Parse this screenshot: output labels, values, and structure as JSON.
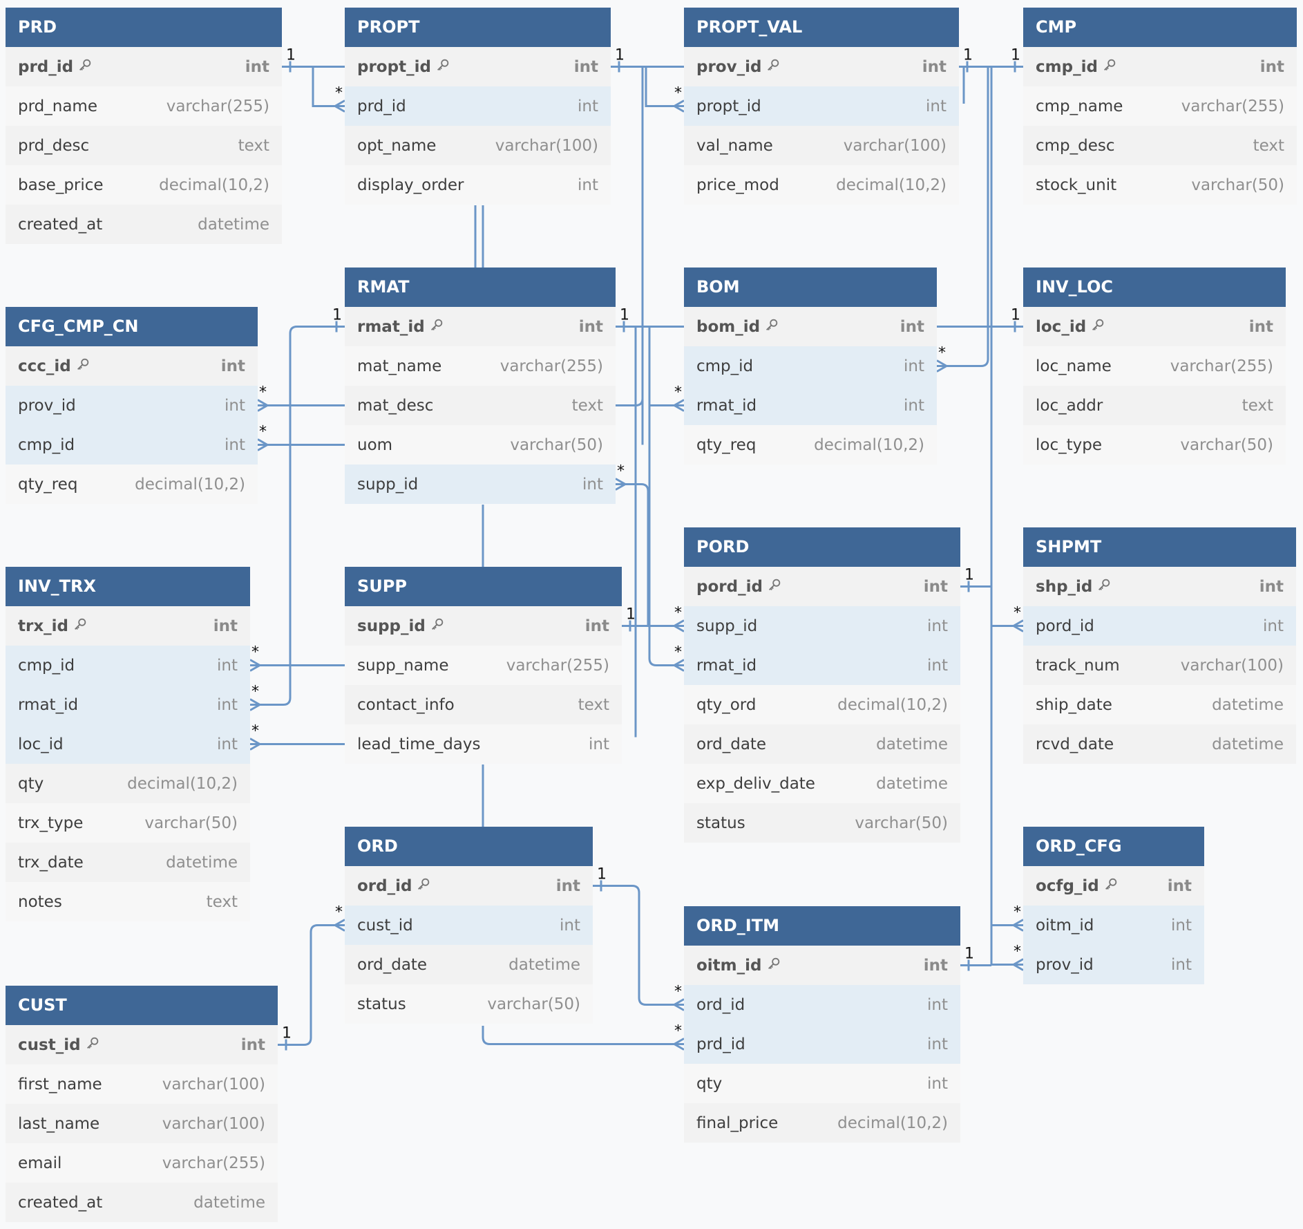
{
  "tables": {
    "PRD": {
      "name": "PRD",
      "fields": [
        {
          "name": "prd_id",
          "type": "int",
          "pk": true
        },
        {
          "name": "prd_name",
          "type": "varchar(255)"
        },
        {
          "name": "prd_desc",
          "type": "text"
        },
        {
          "name": "base_price",
          "type": "decimal(10,2)"
        },
        {
          "name": "created_at",
          "type": "datetime"
        }
      ]
    },
    "PROPT": {
      "name": "PROPT",
      "fields": [
        {
          "name": "propt_id",
          "type": "int",
          "pk": true
        },
        {
          "name": "prd_id",
          "type": "int",
          "fk": true
        },
        {
          "name": "opt_name",
          "type": "varchar(100)"
        },
        {
          "name": "display_order",
          "type": "int"
        }
      ]
    },
    "PROPT_VAL": {
      "name": "PROPT_VAL",
      "fields": [
        {
          "name": "prov_id",
          "type": "int",
          "pk": true
        },
        {
          "name": "propt_id",
          "type": "int",
          "fk": true
        },
        {
          "name": "val_name",
          "type": "varchar(100)"
        },
        {
          "name": "price_mod",
          "type": "decimal(10,2)"
        }
      ]
    },
    "CMP": {
      "name": "CMP",
      "fields": [
        {
          "name": "cmp_id",
          "type": "int",
          "pk": true
        },
        {
          "name": "cmp_name",
          "type": "varchar(255)"
        },
        {
          "name": "cmp_desc",
          "type": "text"
        },
        {
          "name": "stock_unit",
          "type": "varchar(50)"
        }
      ]
    },
    "CFG_CMP_CN": {
      "name": "CFG_CMP_CN",
      "fields": [
        {
          "name": "ccc_id",
          "type": "int",
          "pk": true
        },
        {
          "name": "prov_id",
          "type": "int",
          "fk": true
        },
        {
          "name": "cmp_id",
          "type": "int",
          "fk": true
        },
        {
          "name": "qty_req",
          "type": "decimal(10,2)"
        }
      ]
    },
    "RMAT": {
      "name": "RMAT",
      "fields": [
        {
          "name": "rmat_id",
          "type": "int",
          "pk": true
        },
        {
          "name": "mat_name",
          "type": "varchar(255)"
        },
        {
          "name": "mat_desc",
          "type": "text"
        },
        {
          "name": "uom",
          "type": "varchar(50)"
        },
        {
          "name": "supp_id",
          "type": "int",
          "fk": true
        }
      ]
    },
    "BOM": {
      "name": "BOM",
      "fields": [
        {
          "name": "bom_id",
          "type": "int",
          "pk": true
        },
        {
          "name": "cmp_id",
          "type": "int",
          "fk": true
        },
        {
          "name": "rmat_id",
          "type": "int",
          "fk": true
        },
        {
          "name": "qty_req",
          "type": "decimal(10,2)"
        }
      ]
    },
    "INV_LOC": {
      "name": "INV_LOC",
      "fields": [
        {
          "name": "loc_id",
          "type": "int",
          "pk": true
        },
        {
          "name": "loc_name",
          "type": "varchar(255)"
        },
        {
          "name": "loc_addr",
          "type": "text"
        },
        {
          "name": "loc_type",
          "type": "varchar(50)"
        }
      ]
    },
    "INV_TRX": {
      "name": "INV_TRX",
      "fields": [
        {
          "name": "trx_id",
          "type": "int",
          "pk": true
        },
        {
          "name": "cmp_id",
          "type": "int",
          "fk": true
        },
        {
          "name": "rmat_id",
          "type": "int",
          "fk": true
        },
        {
          "name": "loc_id",
          "type": "int",
          "fk": true
        },
        {
          "name": "qty",
          "type": "decimal(10,2)"
        },
        {
          "name": "trx_type",
          "type": "varchar(50)"
        },
        {
          "name": "trx_date",
          "type": "datetime"
        },
        {
          "name": "notes",
          "type": "text"
        }
      ]
    },
    "SUPP": {
      "name": "SUPP",
      "fields": [
        {
          "name": "supp_id",
          "type": "int",
          "pk": true
        },
        {
          "name": "supp_name",
          "type": "varchar(255)"
        },
        {
          "name": "contact_info",
          "type": "text"
        },
        {
          "name": "lead_time_days",
          "type": "int"
        }
      ]
    },
    "PORD": {
      "name": "PORD",
      "fields": [
        {
          "name": "pord_id",
          "type": "int",
          "pk": true
        },
        {
          "name": "supp_id",
          "type": "int",
          "fk": true
        },
        {
          "name": "rmat_id",
          "type": "int",
          "fk": true
        },
        {
          "name": "qty_ord",
          "type": "decimal(10,2)"
        },
        {
          "name": "ord_date",
          "type": "datetime"
        },
        {
          "name": "exp_deliv_date",
          "type": "datetime"
        },
        {
          "name": "status",
          "type": "varchar(50)"
        }
      ]
    },
    "SHPMT": {
      "name": "SHPMT",
      "fields": [
        {
          "name": "shp_id",
          "type": "int",
          "pk": true
        },
        {
          "name": "pord_id",
          "type": "int",
          "fk": true
        },
        {
          "name": "track_num",
          "type": "varchar(100)"
        },
        {
          "name": "ship_date",
          "type": "datetime"
        },
        {
          "name": "rcvd_date",
          "type": "datetime"
        }
      ]
    },
    "ORD": {
      "name": "ORD",
      "fields": [
        {
          "name": "ord_id",
          "type": "int",
          "pk": true
        },
        {
          "name": "cust_id",
          "type": "int",
          "fk": true
        },
        {
          "name": "ord_date",
          "type": "datetime"
        },
        {
          "name": "status",
          "type": "varchar(50)"
        }
      ]
    },
    "ORD_CFG": {
      "name": "ORD_CFG",
      "fields": [
        {
          "name": "ocfg_id",
          "type": "int",
          "pk": true
        },
        {
          "name": "oitm_id",
          "type": "int",
          "fk": true
        },
        {
          "name": "prov_id",
          "type": "int",
          "fk": true
        }
      ]
    },
    "ORD_ITM": {
      "name": "ORD_ITM",
      "fields": [
        {
          "name": "oitm_id",
          "type": "int",
          "pk": true
        },
        {
          "name": "ord_id",
          "type": "int",
          "fk": true
        },
        {
          "name": "prd_id",
          "type": "int",
          "fk": true
        },
        {
          "name": "qty",
          "type": "int"
        },
        {
          "name": "final_price",
          "type": "decimal(10,2)"
        }
      ]
    },
    "CUST": {
      "name": "CUST",
      "fields": [
        {
          "name": "cust_id",
          "type": "int",
          "pk": true
        },
        {
          "name": "first_name",
          "type": "varchar(100)"
        },
        {
          "name": "last_name",
          "type": "varchar(100)"
        },
        {
          "name": "email",
          "type": "varchar(255)"
        },
        {
          "name": "created_at",
          "type": "datetime"
        }
      ]
    }
  },
  "relationships": [
    {
      "from": "PRD.prd_id",
      "to": "PROPT.prd_id",
      "from_card": "1",
      "to_card": "*"
    },
    {
      "from": "PROPT.propt_id",
      "to": "PROPT_VAL.propt_id",
      "from_card": "1",
      "to_card": "*"
    },
    {
      "from": "PROPT_VAL.prov_id",
      "to": "CFG_CMP_CN.prov_id",
      "from_card": "1",
      "to_card": "*"
    },
    {
      "from": "PROPT_VAL.prov_id",
      "to": "ORD_CFG.prov_id",
      "from_card": "1",
      "to_card": "*"
    },
    {
      "from": "CMP.cmp_id",
      "to": "CFG_CMP_CN.cmp_id",
      "from_card": "1",
      "to_card": "*"
    },
    {
      "from": "CMP.cmp_id",
      "to": "BOM.cmp_id",
      "from_card": "1",
      "to_card": "*"
    },
    {
      "from": "CMP.cmp_id",
      "to": "INV_TRX.cmp_id",
      "from_card": "1",
      "to_card": "*"
    },
    {
      "from": "RMAT.rmat_id",
      "to": "BOM.rmat_id",
      "from_card": "1",
      "to_card": "*"
    },
    {
      "from": "RMAT.rmat_id",
      "to": "INV_TRX.rmat_id",
      "from_card": "1",
      "to_card": "*"
    },
    {
      "from": "RMAT.rmat_id",
      "to": "PORD.rmat_id",
      "from_card": "1",
      "to_card": "*"
    },
    {
      "from": "INV_LOC.loc_id",
      "to": "INV_TRX.loc_id",
      "from_card": "1",
      "to_card": "*"
    },
    {
      "from": "SUPP.supp_id",
      "to": "RMAT.supp_id",
      "from_card": "1",
      "to_card": "*"
    },
    {
      "from": "SUPP.supp_id",
      "to": "PORD.supp_id",
      "from_card": "1",
      "to_card": "*"
    },
    {
      "from": "PORD.pord_id",
      "to": "SHPMT.pord_id",
      "from_card": "1",
      "to_card": "*"
    },
    {
      "from": "ORD.ord_id",
      "to": "ORD_ITM.ord_id",
      "from_card": "1",
      "to_card": "*"
    },
    {
      "from": "PRD.prd_id",
      "to": "ORD_ITM.prd_id",
      "from_card": "1",
      "to_card": "*"
    },
    {
      "from": "ORD_ITM.oitm_id",
      "to": "ORD_CFG.oitm_id",
      "from_card": "1",
      "to_card": "*"
    },
    {
      "from": "CUST.cust_id",
      "to": "ORD.cust_id",
      "from_card": "1",
      "to_card": "*"
    }
  ],
  "colors": {
    "header": "#3f6796",
    "link": "#6b96c7",
    "fk_row": "#e3edf5"
  }
}
